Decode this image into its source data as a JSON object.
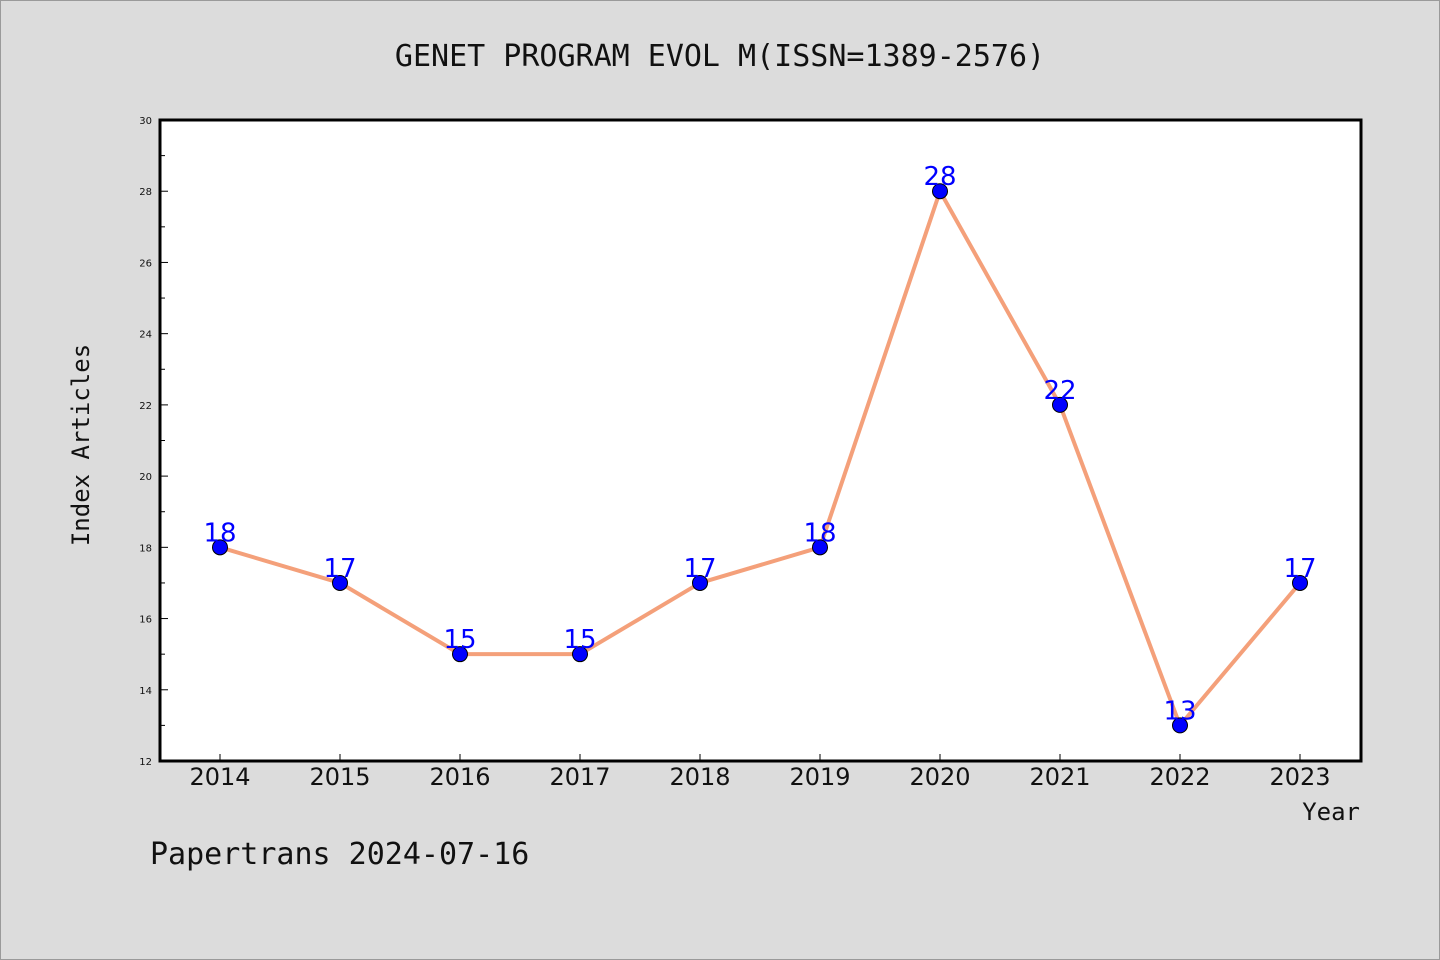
{
  "chart_data": {
    "type": "line",
    "title": "GENET PROGRAM EVOL M(ISSN=1389-2576)",
    "xlabel": "Year",
    "ylabel": "Index Articles",
    "categories": [
      "2014",
      "2015",
      "2016",
      "2017",
      "2018",
      "2019",
      "2020",
      "2021",
      "2022",
      "2023"
    ],
    "values": [
      18,
      17,
      15,
      15,
      17,
      18,
      28,
      22,
      13,
      17
    ],
    "ylim": [
      12,
      30
    ],
    "yticks": [
      12,
      14,
      16,
      18,
      20,
      22,
      24,
      26,
      28,
      30
    ],
    "grid": false,
    "legend": "none",
    "line_color": "#f4a07a",
    "marker_color": "#0000ff",
    "label_color": "#0000ff"
  },
  "footer": {
    "text": "Papertrans 2024-07-16"
  }
}
